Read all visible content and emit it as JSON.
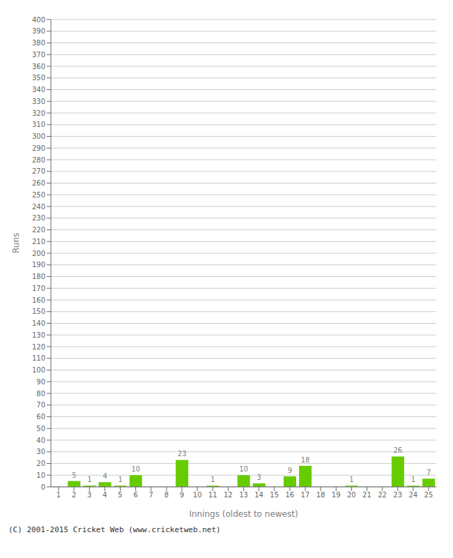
{
  "chart_data": {
    "type": "bar",
    "xlabel": "Innings (oldest to newest)",
    "ylabel": "Runs",
    "categories": [
      "1",
      "2",
      "3",
      "4",
      "5",
      "6",
      "7",
      "8",
      "9",
      "10",
      "11",
      "12",
      "13",
      "14",
      "15",
      "16",
      "17",
      "18",
      "19",
      "20",
      "21",
      "22",
      "23",
      "24",
      "25"
    ],
    "values": [
      0,
      5,
      1,
      4,
      1,
      10,
      0,
      0,
      23,
      0,
      1,
      0,
      10,
      3,
      0,
      9,
      18,
      0,
      0,
      1,
      0,
      0,
      26,
      1,
      7
    ],
    "color": "#66cc00",
    "ylim": [
      0,
      400
    ],
    "yticks": [
      0,
      10,
      20,
      30,
      40,
      50,
      60,
      70,
      80,
      90,
      100,
      110,
      120,
      130,
      140,
      150,
      160,
      170,
      180,
      190,
      200,
      210,
      220,
      230,
      240,
      250,
      260,
      270,
      280,
      290,
      300,
      310,
      320,
      330,
      340,
      350,
      360,
      370,
      380,
      390,
      400
    ],
    "grid": true,
    "data_labels": true,
    "annotations": [
      "(C) 2001-2015 Cricket Web (www.cricketweb.net)"
    ]
  }
}
